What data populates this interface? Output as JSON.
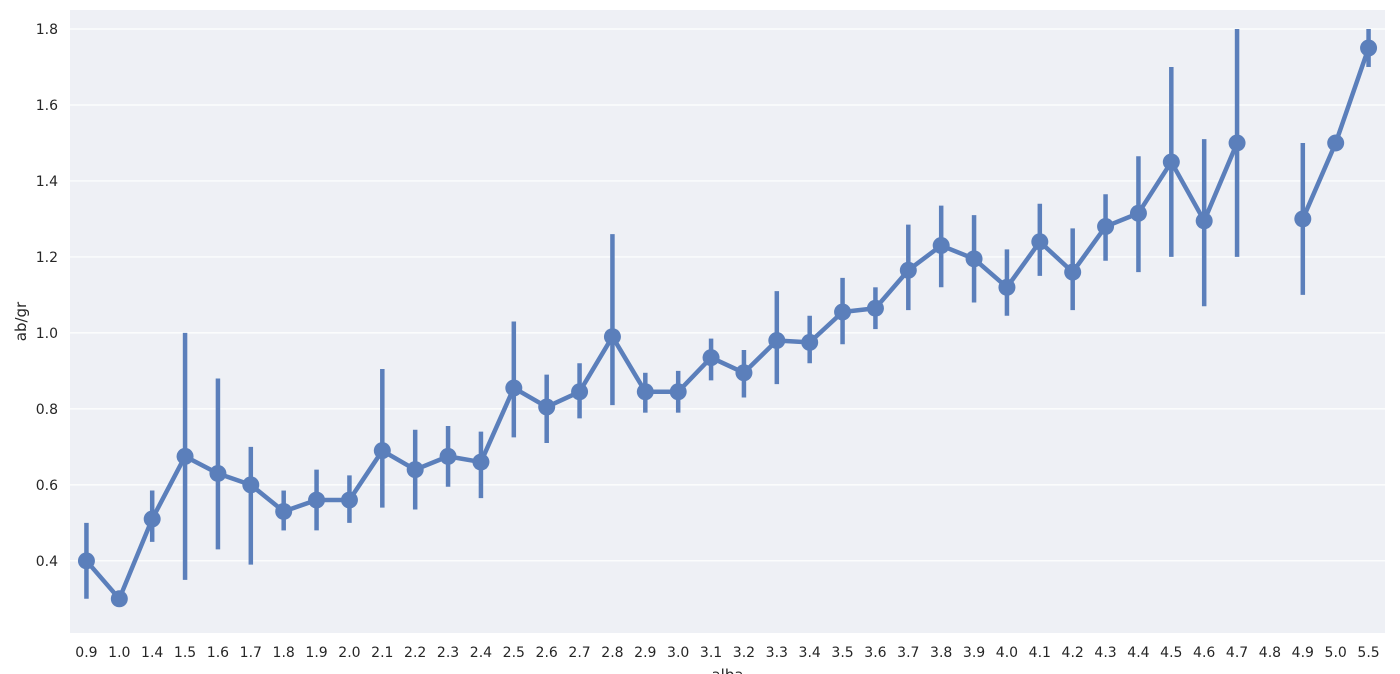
{
  "chart_data": {
    "type": "line",
    "title": "",
    "xlabel": "alba",
    "ylabel": "ab/gr",
    "categories": [
      "0.9",
      "1.0",
      "1.4",
      "1.5",
      "1.6",
      "1.7",
      "1.8",
      "1.9",
      "2.0",
      "2.1",
      "2.2",
      "2.3",
      "2.4",
      "2.5",
      "2.6",
      "2.7",
      "2.8",
      "2.9",
      "3.0",
      "3.1",
      "3.2",
      "3.3",
      "3.4",
      "3.5",
      "3.6",
      "3.7",
      "3.8",
      "3.9",
      "4.0",
      "4.1",
      "4.2",
      "4.3",
      "4.4",
      "4.5",
      "4.6",
      "4.7",
      "4.8",
      "4.9",
      "5.0",
      "5.5"
    ],
    "y_ticks": [
      0.4,
      0.6,
      0.8,
      1.0,
      1.2,
      1.4,
      1.6,
      1.8
    ],
    "y_tick_labels": [
      "0.4",
      "0.6",
      "0.8",
      "1.0",
      "1.2",
      "1.4",
      "1.6",
      "1.8"
    ],
    "ylim": [
      0.21,
      1.85
    ],
    "grid": true,
    "color": "#5b7fbb",
    "background": "#eef0f5",
    "series": [
      {
        "values": [
          0.4,
          0.3,
          0.51,
          0.675,
          0.63,
          0.6,
          0.53,
          0.56,
          0.56,
          0.69,
          0.64,
          0.675,
          0.66,
          0.855,
          0.805,
          0.845,
          0.99,
          0.845,
          0.845,
          0.935,
          0.895,
          0.98,
          0.975,
          1.055,
          1.065,
          1.165,
          1.23,
          1.195,
          1.12,
          1.24,
          1.16,
          1.28,
          1.315,
          1.45,
          1.295,
          1.5,
          null,
          1.3,
          1.5,
          1.75
        ],
        "ci_low": [
          0.3,
          0.3,
          0.45,
          0.35,
          0.43,
          0.39,
          0.48,
          0.48,
          0.5,
          0.54,
          0.535,
          0.595,
          0.565,
          0.725,
          0.71,
          0.775,
          0.81,
          0.79,
          0.79,
          0.875,
          0.83,
          0.865,
          0.92,
          0.97,
          1.01,
          1.06,
          1.12,
          1.08,
          1.045,
          1.15,
          1.06,
          1.19,
          1.16,
          1.2,
          1.07,
          1.2,
          null,
          1.1,
          1.5,
          1.7
        ],
        "ci_high": [
          0.5,
          0.3,
          0.585,
          1.0,
          0.88,
          0.7,
          0.585,
          0.64,
          0.625,
          0.905,
          0.745,
          0.755,
          0.74,
          1.03,
          0.89,
          0.92,
          1.26,
          0.895,
          0.9,
          0.985,
          0.955,
          1.11,
          1.045,
          1.145,
          1.12,
          1.285,
          1.335,
          1.31,
          1.22,
          1.34,
          1.275,
          1.365,
          1.465,
          1.7,
          1.51,
          1.8,
          null,
          1.5,
          1.5,
          1.8
        ]
      }
    ]
  }
}
